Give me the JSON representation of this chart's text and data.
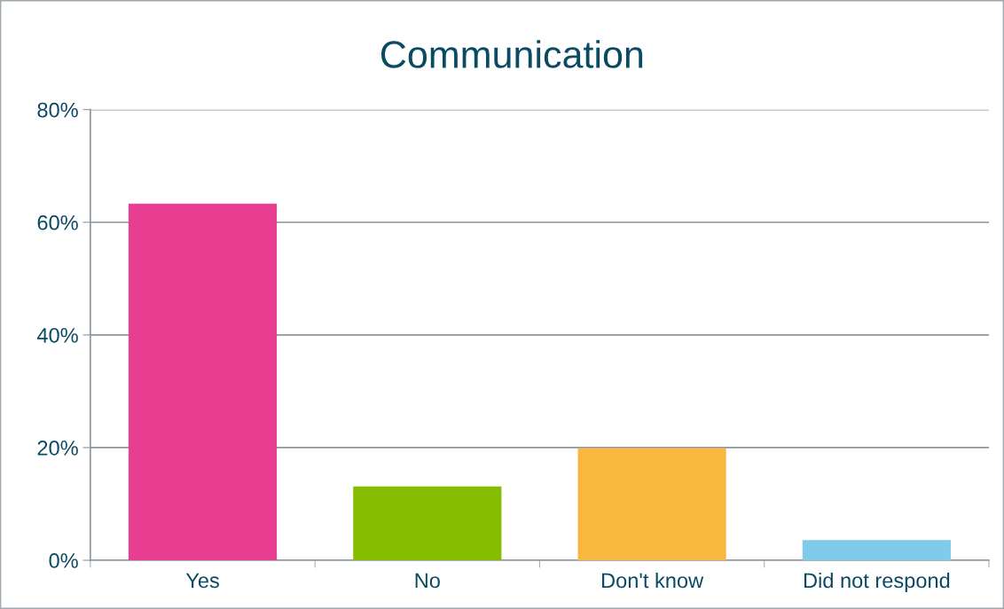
{
  "chart_data": {
    "type": "bar",
    "title": "Communication",
    "categories": [
      "Yes",
      "No",
      "Don't know",
      "Did not respond"
    ],
    "values": [
      63.3,
      13.1,
      19.9,
      3.6
    ],
    "colors": [
      "#e83e92",
      "#86bd00",
      "#f8b83f",
      "#80cbea"
    ],
    "ylim": [
      0,
      80
    ],
    "yticks": [
      {
        "value": 0,
        "label": "0%"
      },
      {
        "value": 20,
        "label": "20%"
      },
      {
        "value": 40,
        "label": "40%"
      },
      {
        "value": 60,
        "label": "60%"
      },
      {
        "value": 80,
        "label": "80%"
      }
    ],
    "grid": "y",
    "legend": false
  }
}
